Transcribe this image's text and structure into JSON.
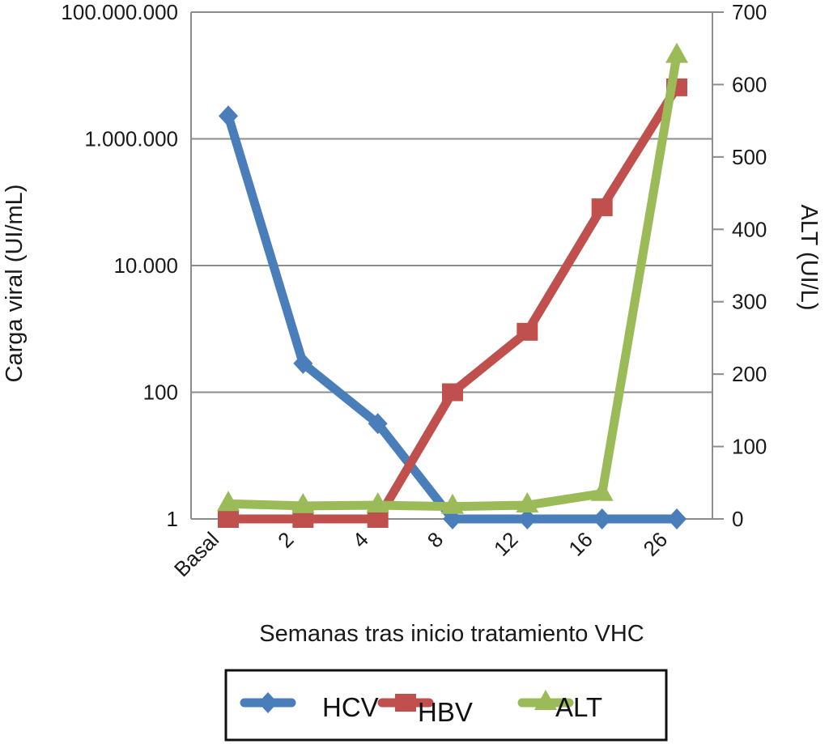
{
  "chart_data": {
    "type": "line",
    "title": "",
    "xlabel": "Semanas tras inicio tratamiento VHC",
    "ylabel": "Carga viral (UI/mL)",
    "y2label": "ALT (UI/L)",
    "categories": [
      "Basal",
      "2",
      "4",
      "8",
      "12",
      "16",
      "26"
    ],
    "y_scale": "log",
    "ylim": [
      1,
      100000000
    ],
    "y_ticks": [
      1,
      100,
      10000,
      1000000,
      100000000
    ],
    "y_tick_labels": [
      "1",
      "100",
      "10.000",
      "1.000.000",
      "100.000.000"
    ],
    "y2lim": [
      0,
      700
    ],
    "y2_ticks": [
      0,
      100,
      200,
      300,
      400,
      500,
      600,
      700
    ],
    "y2_tick_labels": [
      "0",
      "100",
      "200",
      "300",
      "400",
      "500",
      "600",
      "700"
    ],
    "grid": true,
    "legend_position": "bottom",
    "series": [
      {
        "name": "HCV",
        "axis": "left",
        "marker": "diamond",
        "color": "#4a7ebb",
        "values": [
          2300000,
          285,
          32,
          1,
          1,
          1,
          1
        ]
      },
      {
        "name": "HBV",
        "axis": "left",
        "marker": "square",
        "color": "#c0504d",
        "values": [
          1,
          1,
          1,
          100,
          900,
          83000,
          6500000
        ]
      },
      {
        "name": "ALT",
        "axis": "right",
        "marker": "triangle",
        "color": "#9bbb59",
        "values": [
          21,
          18,
          19,
          17,
          19,
          35,
          640
        ]
      }
    ]
  }
}
